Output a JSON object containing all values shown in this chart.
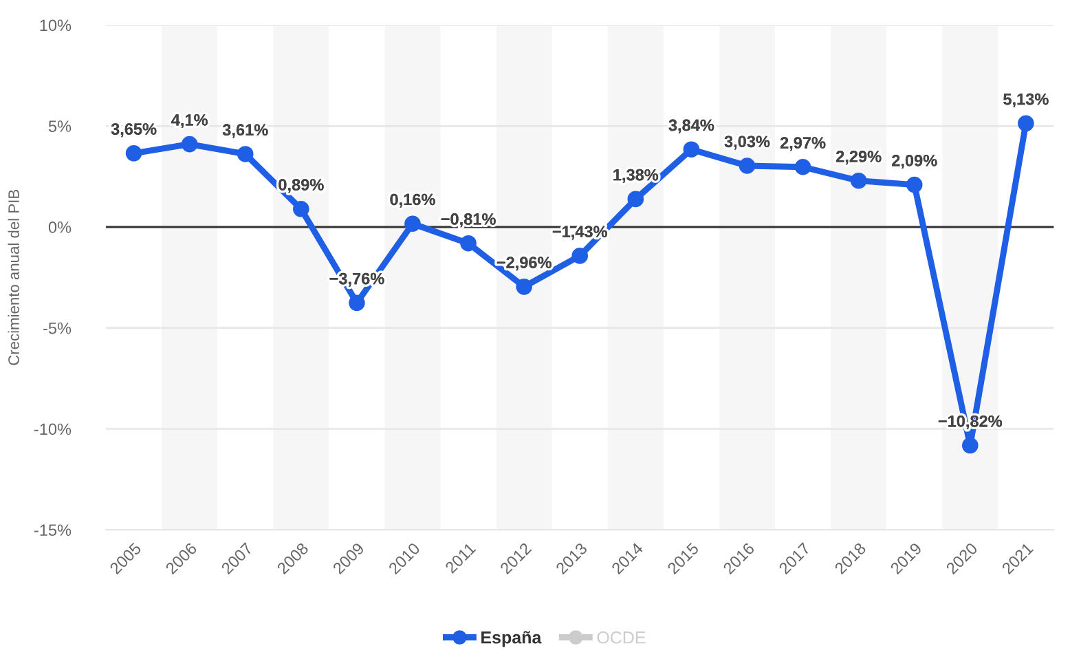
{
  "chart_data": {
    "type": "line",
    "ylabel": "Crecimiento anual del PIB",
    "x": [
      2005,
      2006,
      2007,
      2008,
      2009,
      2010,
      2011,
      2012,
      2013,
      2014,
      2015,
      2016,
      2017,
      2018,
      2019,
      2020,
      2021
    ],
    "series": [
      {
        "name": "España",
        "color": "#1f5fe5",
        "values": [
          3.65,
          4.1,
          3.61,
          0.89,
          -3.76,
          0.16,
          -0.81,
          -2.96,
          -1.43,
          1.38,
          3.84,
          3.03,
          2.97,
          2.29,
          2.09,
          -10.82,
          5.13
        ],
        "value_labels": [
          "3,65%",
          "4,1%",
          "3,61%",
          "0,89%",
          "−3,76%",
          "0,16%",
          "−0,81%",
          "−2,96%",
          "−1,43%",
          "1,38%",
          "3,84%",
          "3,03%",
          "2,97%",
          "2,29%",
          "2,09%",
          "−10,82%",
          "5,13%"
        ]
      },
      {
        "name": "OCDE",
        "color": "#cccccc",
        "values": [
          null,
          null,
          null,
          null,
          null,
          null,
          null,
          null,
          null,
          null,
          null,
          null,
          null,
          null,
          null,
          null,
          null
        ]
      }
    ],
    "xlim": [
      2004.5,
      2021.5
    ],
    "xticks": [
      2005,
      2006,
      2007,
      2008,
      2009,
      2010,
      2011,
      2012,
      2013,
      2014,
      2015,
      2016,
      2017,
      2018,
      2019,
      2020,
      2021
    ],
    "ylim": [
      -15,
      10
    ],
    "yticks": [
      {
        "value": 10,
        "label": "10%"
      },
      {
        "value": 5,
        "label": "5%"
      },
      {
        "value": 0,
        "label": "0%"
      },
      {
        "value": -5,
        "label": "-5%"
      },
      {
        "value": -10,
        "label": "-10%"
      },
      {
        "value": -15,
        "label": "-15%"
      }
    ],
    "ref_lines": [
      {
        "axis": "y",
        "value": 0,
        "color": "#333333"
      }
    ],
    "bands": [
      {
        "axis": "x",
        "from": 2005.5,
        "to": 2006.5,
        "color": "#f6f6f6"
      },
      {
        "axis": "x",
        "from": 2007.5,
        "to": 2008.5,
        "color": "#f6f6f6"
      },
      {
        "axis": "x",
        "from": 2009.5,
        "to": 2010.5,
        "color": "#f6f6f6"
      },
      {
        "axis": "x",
        "from": 2011.5,
        "to": 2012.5,
        "color": "#f6f6f6"
      },
      {
        "axis": "x",
        "from": 2013.5,
        "to": 2014.5,
        "color": "#f6f6f6"
      },
      {
        "axis": "x",
        "from": 2015.5,
        "to": 2016.5,
        "color": "#f6f6f6"
      },
      {
        "axis": "x",
        "from": 2017.5,
        "to": 2018.5,
        "color": "#f6f6f6"
      },
      {
        "axis": "x",
        "from": 2019.5,
        "to": 2020.5,
        "color": "#f6f6f6"
      }
    ],
    "grid": "y",
    "legend": "bottom",
    "marker": "circle",
    "line_style": "solid"
  }
}
